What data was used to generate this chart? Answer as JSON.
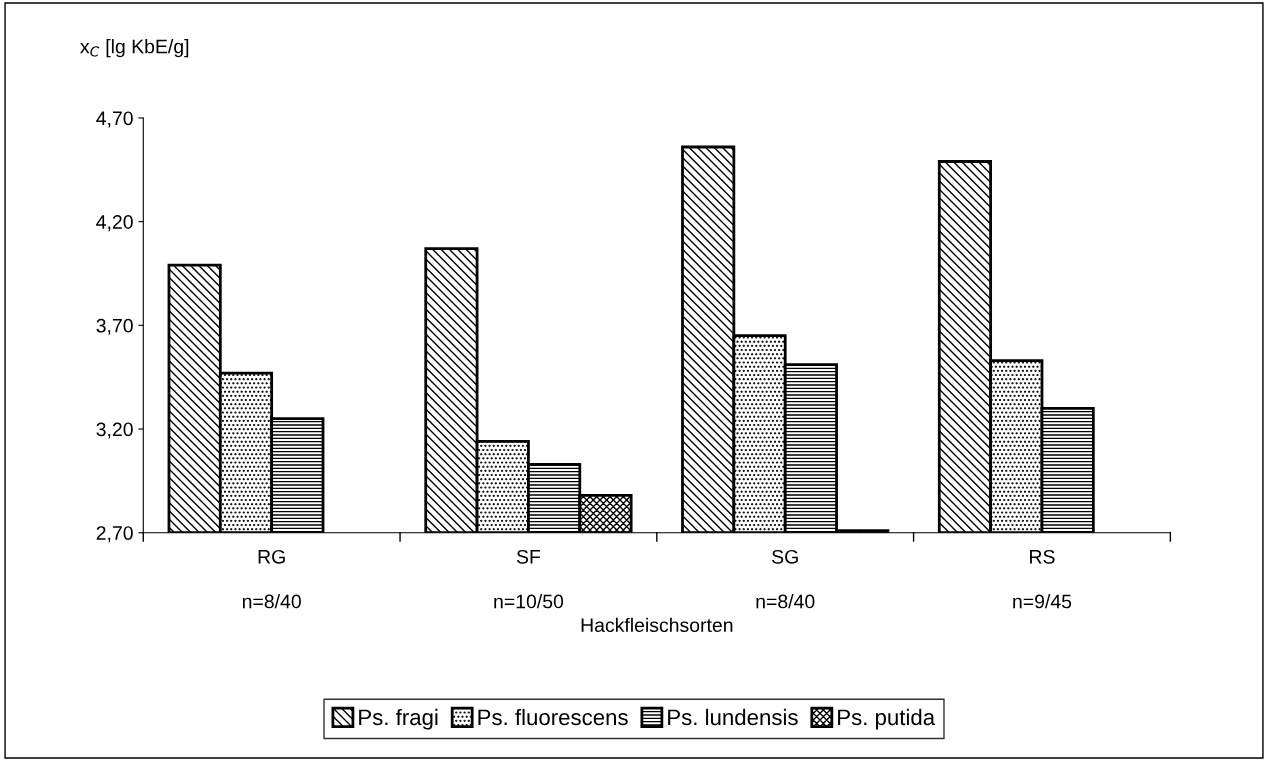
{
  "chart_data": {
    "type": "bar",
    "xlabel": "Hackfleischsorten",
    "ylabel": "x$_{C}$ [lg KbE/g]",
    "categories": [
      "RG\n\nn=8/40",
      "SF\n\nn=10/50",
      "SG\n\nn=8/40",
      "RS\n\nn=9/45"
    ],
    "series": [
      {
        "name": "Ps. fragi",
        "color": "#000000",
        "values": [
          3.99,
          4.07,
          4.56,
          4.49
        ]
      },
      {
        "name": "Ps. fluorescens",
        "color": "#000000",
        "values": [
          3.47,
          3.14,
          3.65,
          3.53
        ]
      },
      {
        "name": "Ps. lundensis",
        "color": "#000000",
        "values": [
          3.25,
          3.03,
          3.51,
          3.3
        ]
      },
      {
        "name": "Ps. putida",
        "color": "#000000",
        "values": [
          null,
          2.88,
          2.71,
          null
        ]
      }
    ],
    "ylim": [
      2.7,
      4.7
    ],
    "yticks": [
      {
        "value": 2.7,
        "label": "2,70"
      },
      {
        "value": 3.2,
        "label": "3,20"
      },
      {
        "value": 3.7,
        "label": "3,70"
      },
      {
        "value": 4.2,
        "label": "4,20"
      },
      {
        "value": 4.7,
        "label": "4,70"
      }
    ],
    "grid": false,
    "legend": "bottom"
  }
}
